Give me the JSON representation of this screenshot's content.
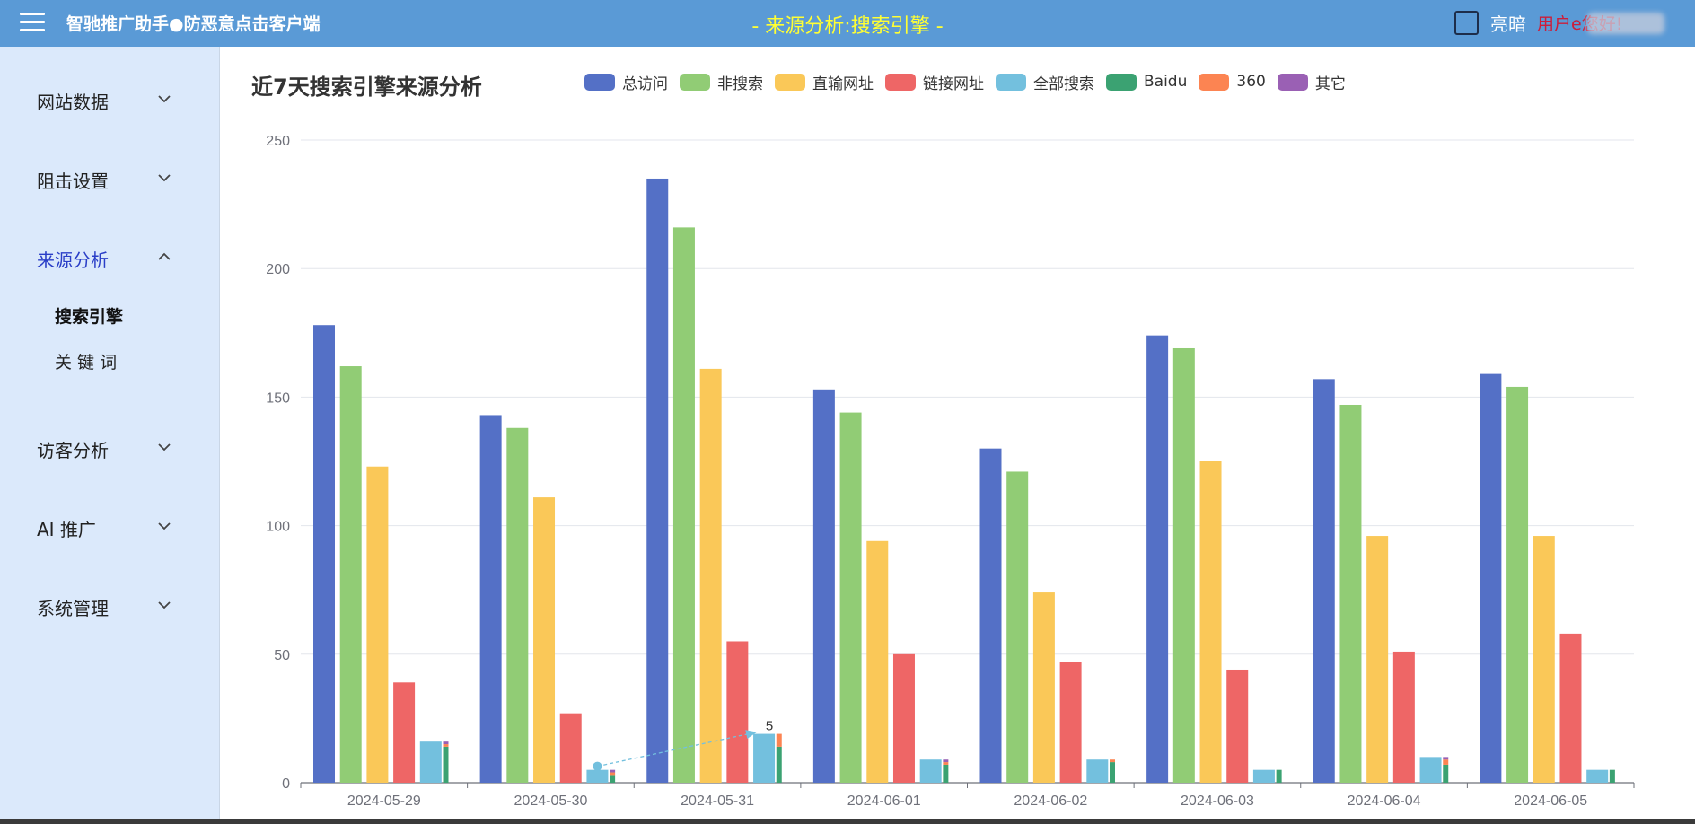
{
  "header": {
    "app_title": "智驰推广助手●防恶意点击客户端",
    "page_title": "- 来源分析:搜索引擎 -",
    "theme_label": "亮暗",
    "user_greeting": "用户e您好!"
  },
  "sidebar": {
    "items": [
      {
        "label": "网站数据",
        "expanded": false
      },
      {
        "label": "阻击设置",
        "expanded": false
      },
      {
        "label": "来源分析",
        "expanded": true,
        "children": [
          "搜索引擎",
          "关 键 词"
        ]
      },
      {
        "label": "访客分析",
        "expanded": false
      },
      {
        "label": "AI 推广",
        "expanded": false
      },
      {
        "label": "系统管理",
        "expanded": false
      }
    ]
  },
  "colors": {
    "header_bg": "#5a9ad6",
    "sidebar_bg": "#dbe9fb",
    "active_nav": "#2a3ec7",
    "page_title": "#ffff33",
    "greeting": "#cc1d3a"
  },
  "chart_data": {
    "type": "bar",
    "title": "近7天搜索引擎来源分析",
    "xlabel": "",
    "ylabel": "",
    "ylim": [
      0,
      250
    ],
    "y_ticks": [
      0,
      50,
      100,
      150,
      200,
      250
    ],
    "grid": true,
    "legend_position": "top",
    "categories": [
      "2024-05-29",
      "2024-05-30",
      "2024-05-31",
      "2024-06-01",
      "2024-06-02",
      "2024-06-03",
      "2024-06-04",
      "2024-06-05"
    ],
    "series": [
      {
        "name": "总访问",
        "color": "#5470c6",
        "values": [
          178,
          143,
          235,
          153,
          130,
          174,
          157,
          159
        ]
      },
      {
        "name": "非搜索",
        "color": "#91cc75",
        "values": [
          162,
          138,
          216,
          144,
          121,
          169,
          147,
          154
        ]
      },
      {
        "name": "直输网址",
        "color": "#fac858",
        "values": [
          123,
          111,
          161,
          94,
          74,
          125,
          96,
          96
        ]
      },
      {
        "name": "链接网址",
        "color": "#ee6666",
        "values": [
          39,
          27,
          55,
          50,
          47,
          44,
          51,
          58
        ]
      },
      {
        "name": "全部搜索",
        "color": "#73c0de",
        "values": [
          16,
          5,
          19,
          9,
          9,
          5,
          10,
          5
        ]
      },
      {
        "name": "Baidu",
        "color": "#3ba272",
        "values": [
          14,
          3,
          14,
          7,
          8,
          5,
          7,
          5
        ]
      },
      {
        "name": "360",
        "color": "#fc8452",
        "values": [
          1,
          1,
          5,
          1,
          1,
          0,
          2,
          0
        ]
      },
      {
        "name": "其它",
        "color": "#9a60b4",
        "values": [
          1,
          1,
          0,
          1,
          0,
          0,
          1,
          0
        ]
      }
    ],
    "annotations": [
      {
        "text": "5",
        "from": {
          "category": "2024-05-30",
          "value": 5
        },
        "to": {
          "category": "2024-05-31",
          "value": 19
        }
      }
    ]
  }
}
